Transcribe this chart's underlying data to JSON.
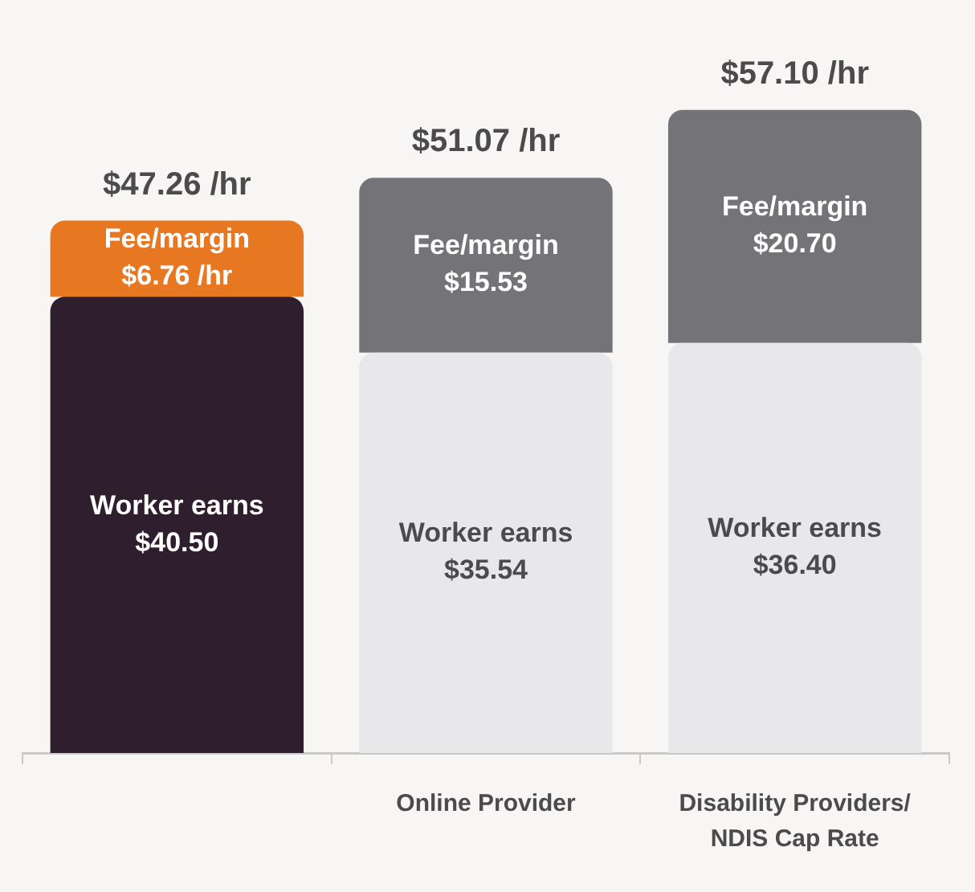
{
  "chart_data": {
    "type": "bar",
    "stacked": true,
    "categories": [
      null,
      "Online Provider",
      "Disability Providers/ NDIS Cap Rate"
    ],
    "series": [
      {
        "name": "Worker earns",
        "values": [
          40.5,
          35.54,
          36.4
        ],
        "colors": [
          "#2f1e2e",
          "#e8e8ea",
          "#e8e8ea"
        ],
        "value_labels": [
          "$40.50",
          "$35.54",
          "$36.40"
        ]
      },
      {
        "name": "Fee/margin",
        "values": [
          6.76,
          15.53,
          20.7
        ],
        "colors": [
          "#e87722",
          "#737378",
          "#737378"
        ],
        "value_labels": [
          "$6.76 /hr",
          "$15.53",
          "$20.70"
        ]
      }
    ],
    "totals": [
      "$47.26 /hr",
      "$51.07 /hr",
      "$57.10 /hr"
    ],
    "tick_labels": "x"
  }
}
